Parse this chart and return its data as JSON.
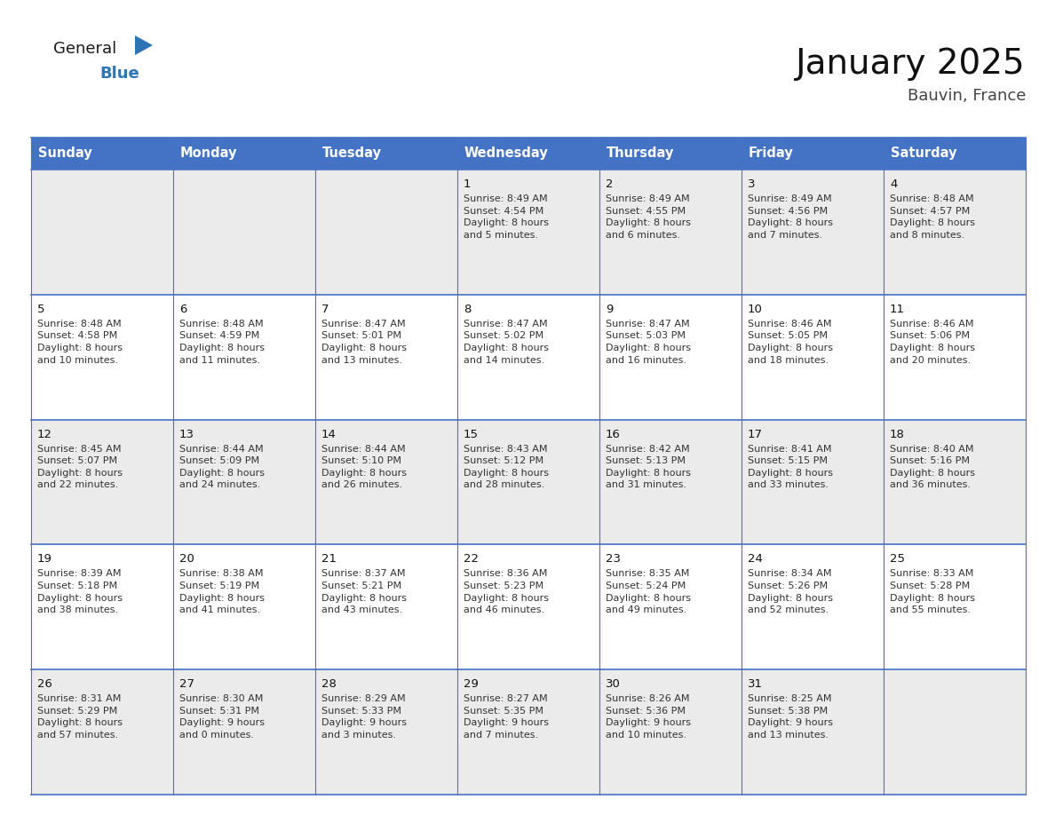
{
  "title": "January 2025",
  "subtitle": "Bauvin, France",
  "header_bg": "#4472C4",
  "header_text_color": "#FFFFFF",
  "header_font_size": 10.5,
  "day_names": [
    "Sunday",
    "Monday",
    "Tuesday",
    "Wednesday",
    "Thursday",
    "Friday",
    "Saturday"
  ],
  "title_font_size": 28,
  "subtitle_font_size": 13,
  "cell_font_size": 8.0,
  "day_num_font_size": 9.5,
  "calendar": [
    [
      {
        "day": "",
        "info": ""
      },
      {
        "day": "",
        "info": ""
      },
      {
        "day": "",
        "info": ""
      },
      {
        "day": "1",
        "info": "Sunrise: 8:49 AM\nSunset: 4:54 PM\nDaylight: 8 hours\nand 5 minutes."
      },
      {
        "day": "2",
        "info": "Sunrise: 8:49 AM\nSunset: 4:55 PM\nDaylight: 8 hours\nand 6 minutes."
      },
      {
        "day": "3",
        "info": "Sunrise: 8:49 AM\nSunset: 4:56 PM\nDaylight: 8 hours\nand 7 minutes."
      },
      {
        "day": "4",
        "info": "Sunrise: 8:48 AM\nSunset: 4:57 PM\nDaylight: 8 hours\nand 8 minutes."
      }
    ],
    [
      {
        "day": "5",
        "info": "Sunrise: 8:48 AM\nSunset: 4:58 PM\nDaylight: 8 hours\nand 10 minutes."
      },
      {
        "day": "6",
        "info": "Sunrise: 8:48 AM\nSunset: 4:59 PM\nDaylight: 8 hours\nand 11 minutes."
      },
      {
        "day": "7",
        "info": "Sunrise: 8:47 AM\nSunset: 5:01 PM\nDaylight: 8 hours\nand 13 minutes."
      },
      {
        "day": "8",
        "info": "Sunrise: 8:47 AM\nSunset: 5:02 PM\nDaylight: 8 hours\nand 14 minutes."
      },
      {
        "day": "9",
        "info": "Sunrise: 8:47 AM\nSunset: 5:03 PM\nDaylight: 8 hours\nand 16 minutes."
      },
      {
        "day": "10",
        "info": "Sunrise: 8:46 AM\nSunset: 5:05 PM\nDaylight: 8 hours\nand 18 minutes."
      },
      {
        "day": "11",
        "info": "Sunrise: 8:46 AM\nSunset: 5:06 PM\nDaylight: 8 hours\nand 20 minutes."
      }
    ],
    [
      {
        "day": "12",
        "info": "Sunrise: 8:45 AM\nSunset: 5:07 PM\nDaylight: 8 hours\nand 22 minutes."
      },
      {
        "day": "13",
        "info": "Sunrise: 8:44 AM\nSunset: 5:09 PM\nDaylight: 8 hours\nand 24 minutes."
      },
      {
        "day": "14",
        "info": "Sunrise: 8:44 AM\nSunset: 5:10 PM\nDaylight: 8 hours\nand 26 minutes."
      },
      {
        "day": "15",
        "info": "Sunrise: 8:43 AM\nSunset: 5:12 PM\nDaylight: 8 hours\nand 28 minutes."
      },
      {
        "day": "16",
        "info": "Sunrise: 8:42 AM\nSunset: 5:13 PM\nDaylight: 8 hours\nand 31 minutes."
      },
      {
        "day": "17",
        "info": "Sunrise: 8:41 AM\nSunset: 5:15 PM\nDaylight: 8 hours\nand 33 minutes."
      },
      {
        "day": "18",
        "info": "Sunrise: 8:40 AM\nSunset: 5:16 PM\nDaylight: 8 hours\nand 36 minutes."
      }
    ],
    [
      {
        "day": "19",
        "info": "Sunrise: 8:39 AM\nSunset: 5:18 PM\nDaylight: 8 hours\nand 38 minutes."
      },
      {
        "day": "20",
        "info": "Sunrise: 8:38 AM\nSunset: 5:19 PM\nDaylight: 8 hours\nand 41 minutes."
      },
      {
        "day": "21",
        "info": "Sunrise: 8:37 AM\nSunset: 5:21 PM\nDaylight: 8 hours\nand 43 minutes."
      },
      {
        "day": "22",
        "info": "Sunrise: 8:36 AM\nSunset: 5:23 PM\nDaylight: 8 hours\nand 46 minutes."
      },
      {
        "day": "23",
        "info": "Sunrise: 8:35 AM\nSunset: 5:24 PM\nDaylight: 8 hours\nand 49 minutes."
      },
      {
        "day": "24",
        "info": "Sunrise: 8:34 AM\nSunset: 5:26 PM\nDaylight: 8 hours\nand 52 minutes."
      },
      {
        "day": "25",
        "info": "Sunrise: 8:33 AM\nSunset: 5:28 PM\nDaylight: 8 hours\nand 55 minutes."
      }
    ],
    [
      {
        "day": "26",
        "info": "Sunrise: 8:31 AM\nSunset: 5:29 PM\nDaylight: 8 hours\nand 57 minutes."
      },
      {
        "day": "27",
        "info": "Sunrise: 8:30 AM\nSunset: 5:31 PM\nDaylight: 9 hours\nand 0 minutes."
      },
      {
        "day": "28",
        "info": "Sunrise: 8:29 AM\nSunset: 5:33 PM\nDaylight: 9 hours\nand 3 minutes."
      },
      {
        "day": "29",
        "info": "Sunrise: 8:27 AM\nSunset: 5:35 PM\nDaylight: 9 hours\nand 7 minutes."
      },
      {
        "day": "30",
        "info": "Sunrise: 8:26 AM\nSunset: 5:36 PM\nDaylight: 9 hours\nand 10 minutes."
      },
      {
        "day": "31",
        "info": "Sunrise: 8:25 AM\nSunset: 5:38 PM\nDaylight: 9 hours\nand 13 minutes."
      },
      {
        "day": "",
        "info": ""
      }
    ]
  ],
  "grid_line_color": "#4472C4",
  "row_bg_colors": [
    "#EBEBEB",
    "#FFFFFF",
    "#EBEBEB",
    "#FFFFFF",
    "#EBEBEB"
  ],
  "logo_general_color": "#1A1A1A",
  "logo_blue_color": "#2E75B6",
  "logo_triangle_color": "#2E75B6"
}
